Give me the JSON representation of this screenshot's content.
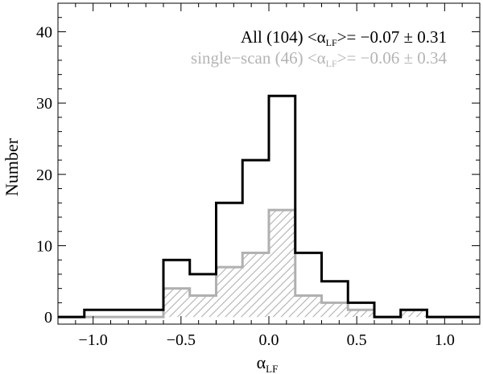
{
  "chart_data": {
    "type": "bar",
    "subtype": "step-histogram",
    "title": "",
    "xlabel": "α",
    "xlabel_subscript": "LF",
    "ylabel": "Number",
    "xlim": [
      -1.2,
      1.2
    ],
    "ylim": [
      -1,
      44
    ],
    "xticks": [
      -1.0,
      -0.5,
      0.0,
      0.5,
      1.0
    ],
    "xtick_labels": [
      "−1.0",
      "−0.5",
      "0.0",
      "0.5",
      "1.0"
    ],
    "yticks": [
      0,
      10,
      20,
      30,
      40
    ],
    "ytick_labels": [
      "0",
      "10",
      "20",
      "30",
      "40"
    ],
    "grid": false,
    "legend_position": "top-right",
    "bin_edges": [
      -1.2,
      -1.05,
      -0.9,
      -0.75,
      -0.6,
      -0.45,
      -0.3,
      -0.15,
      0.0,
      0.15,
      0.3,
      0.45,
      0.6,
      0.75,
      0.9,
      1.05,
      1.2
    ],
    "series": [
      {
        "name": "All",
        "style": "outline",
        "color": "#000000",
        "values": [
          0,
          1,
          1,
          1,
          8,
          6,
          16,
          22,
          31,
          9,
          5,
          2,
          0,
          1,
          0,
          0
        ]
      },
      {
        "name": "single−scan",
        "style": "hatched",
        "color": "#b0b0b0",
        "values": [
          0,
          0,
          0,
          0,
          4,
          3,
          7,
          9,
          15,
          3,
          2,
          1,
          0,
          1,
          0,
          0
        ]
      }
    ],
    "annotations": [
      {
        "prefix": "All (104) <α",
        "sub": "LF",
        "suffix": ">= −0.07 ± 0.31",
        "color": "#000000"
      },
      {
        "prefix": "single−scan (46) <α",
        "sub": "LF",
        "suffix": ">= −0.06 ± 0.34",
        "color": "#b4b4b4"
      }
    ]
  }
}
